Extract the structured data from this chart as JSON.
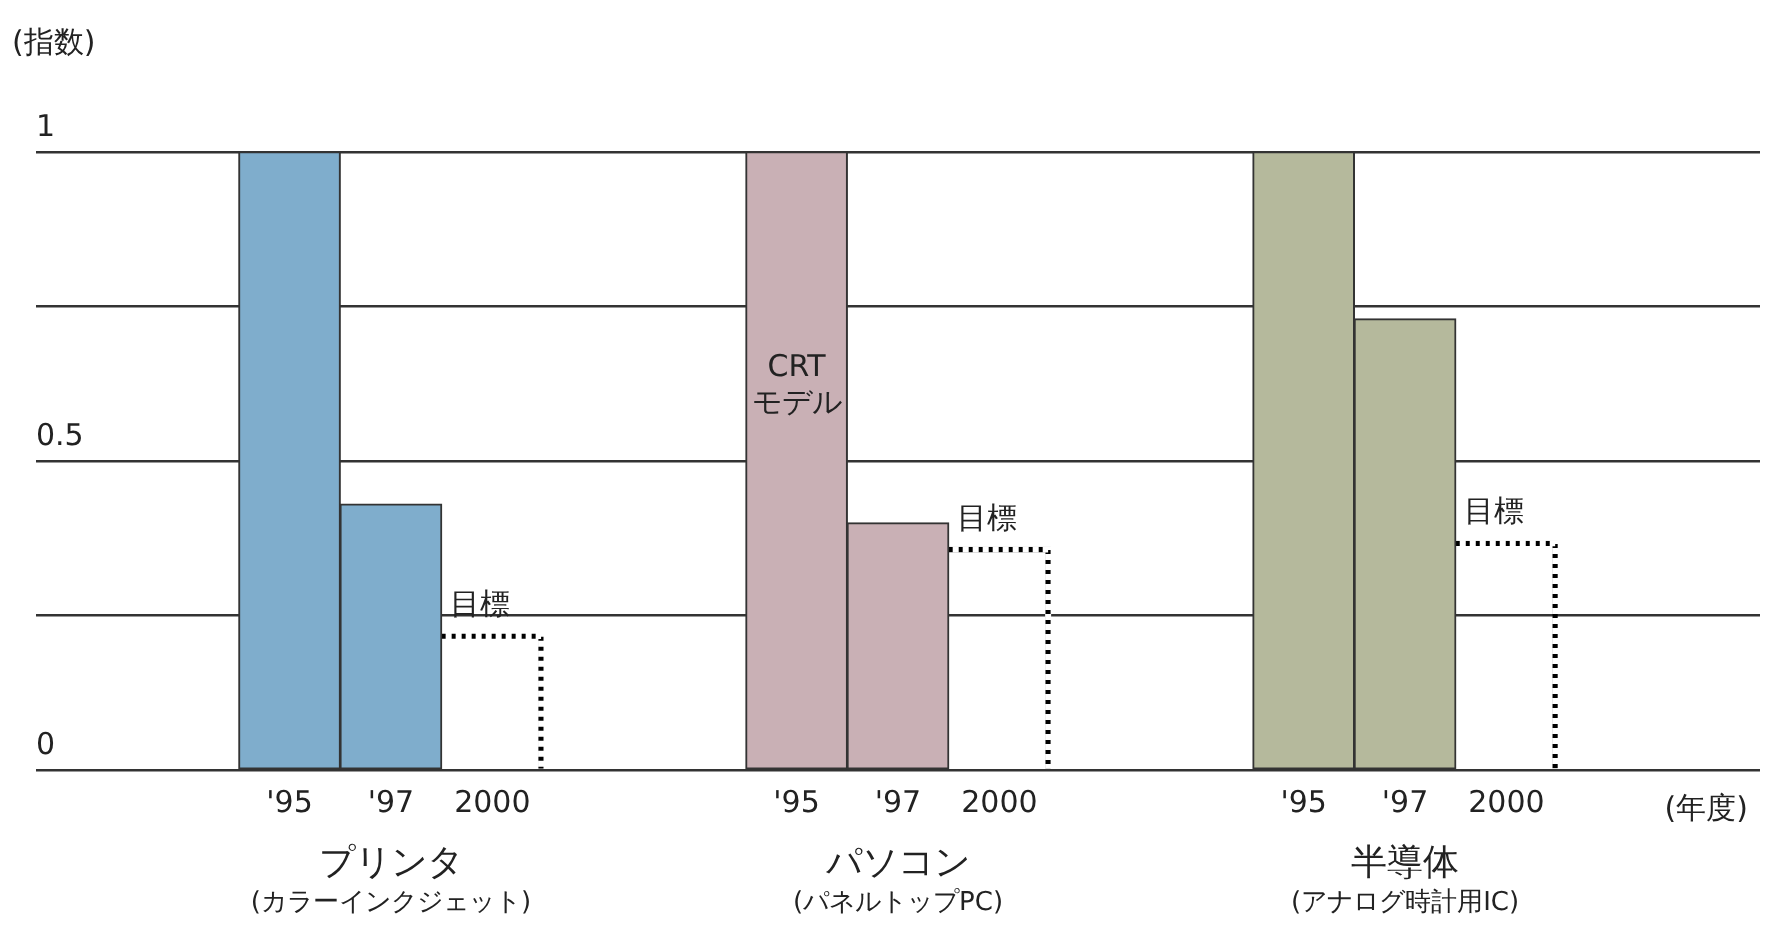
{
  "chart_data": {
    "type": "bar",
    "ylabel": "(指数)",
    "xlabel": "(年度)",
    "categories": [
      null,
      null,
      "'95",
      "'97",
      "2000",
      null,
      null,
      "'95",
      "'97",
      "2000",
      null,
      null,
      "'95",
      "'97",
      "2000",
      null,
      null
    ],
    "series": [
      {
        "values": [
          null,
          null,
          1,
          0.43,
          null,
          null,
          null,
          1,
          0.4,
          null,
          null,
          null,
          1,
          0.73,
          null,
          null,
          null
        ],
        "colors": [
          null,
          null,
          "#7fadcc",
          "#7fadcc",
          null,
          null,
          null,
          "#c9b0b5",
          "#c9b0b5",
          null,
          null,
          null,
          "#b5b99c",
          "#b5b99c",
          null,
          null,
          null
        ],
        "value_labels": [
          null,
          null,
          null,
          null,
          null,
          null,
          null,
          "CRT\nモデル",
          null,
          null,
          null,
          null,
          null,
          null,
          null,
          null,
          null
        ]
      },
      {
        "color": "#000000",
        "line_style": "dotted",
        "values": [
          null,
          null,
          null,
          null,
          0.22,
          null,
          null,
          null,
          null,
          0.36,
          null,
          null,
          null,
          null,
          0.37,
          null,
          null
        ],
        "value_labels": [
          null,
          null,
          null,
          null,
          "目標",
          null,
          null,
          null,
          null,
          "目標",
          null,
          null,
          null,
          null,
          "目標",
          null,
          null
        ]
      }
    ],
    "annotations": [
      "プリンタ",
      "(カラーインクジェット)",
      "パソコン",
      "(パネルトップPC)",
      "半導体",
      "(アナログ時計用IC)"
    ],
    "ylim": [
      0,
      1
    ],
    "yticks": [
      0,
      {
        "value": 0.25,
        "label": null
      },
      0.5,
      {
        "value": 0.75,
        "label": null
      },
      1
    ],
    "grid": "y",
    "legend": false
  }
}
